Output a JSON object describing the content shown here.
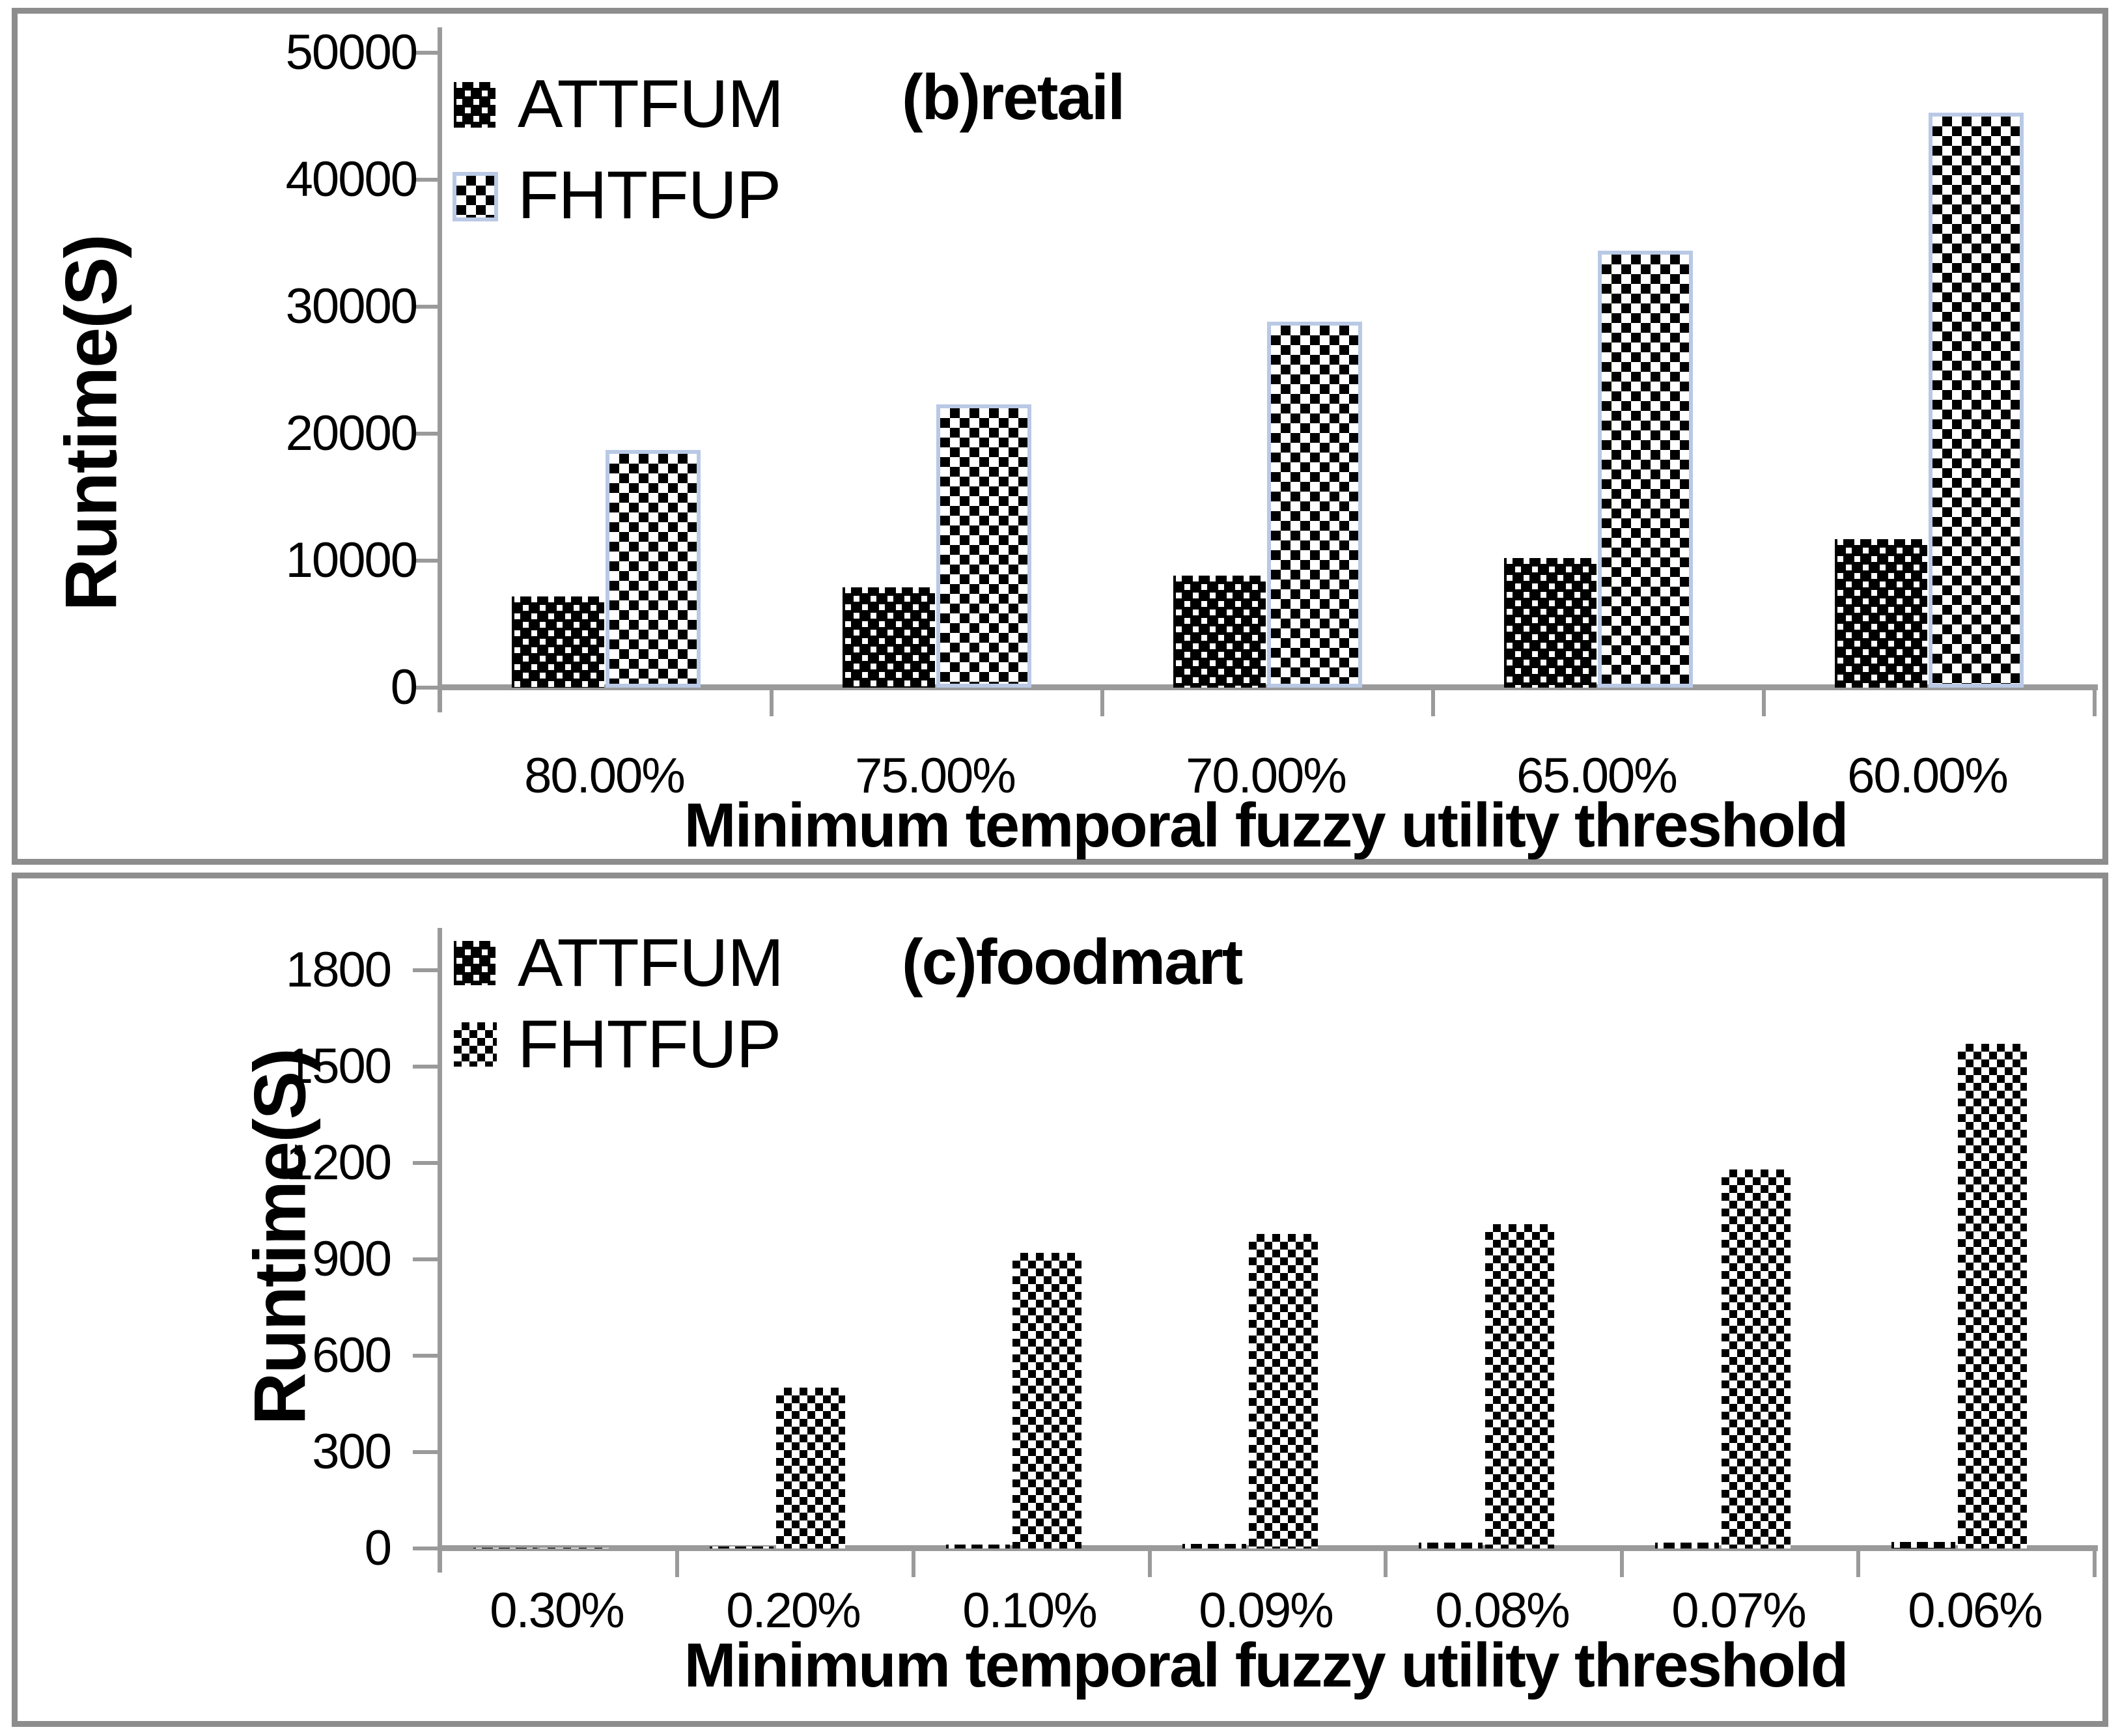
{
  "figure": {
    "background": "#ffffff",
    "panel_border_color": "#8d8d8d",
    "axis_color": "#9a9a9a",
    "bar_color": "#000000",
    "fhtfup_bar_border_color": "#b9c9e5"
  },
  "chart_data": [
    {
      "type": "bar",
      "title": "(b)retail",
      "xlabel": "Minimum temporal fuzzy utility threshold",
      "ylabel": "Runtime(S)",
      "categories": [
        "80.00%",
        "75.00%",
        "70.00%",
        "65.00%",
        "60.00%"
      ],
      "series": [
        {
          "name": "ATTFUM",
          "values": [
            7200,
            7900,
            8800,
            10200,
            11700
          ]
        },
        {
          "name": "FHTFUP",
          "values": [
            18700,
            22300,
            28800,
            34400,
            45300
          ]
        }
      ],
      "ylim": [
        0,
        50000
      ],
      "ytick_step": 10000,
      "y_ticks": [
        "0",
        "10000",
        "20000",
        "30000",
        "40000",
        "50000"
      ],
      "legend_position": "top-left",
      "grid": false
    },
    {
      "type": "bar",
      "title": "(c)foodmart",
      "xlabel": "Minimum temporal fuzzy utility threshold",
      "ylabel": "Runtime(S)",
      "categories": [
        "0.30%",
        "0.20%",
        "0.10%",
        "0.09%",
        "0.08%",
        "0.07%",
        "0.06%"
      ],
      "series": [
        {
          "name": "ATTFUM",
          "values": [
            2,
            6,
            12,
            15,
            18,
            18,
            20
          ]
        },
        {
          "name": "FHTFUP",
          "values": [
            3,
            500,
            920,
            980,
            1010,
            1180,
            1570
          ]
        }
      ],
      "ylim": [
        0,
        1800
      ],
      "ytick_step": 300,
      "y_ticks": [
        "0",
        "300",
        "600",
        "900",
        "1200",
        "1500",
        "1800"
      ],
      "legend_position": "top-left",
      "grid": false
    }
  ]
}
